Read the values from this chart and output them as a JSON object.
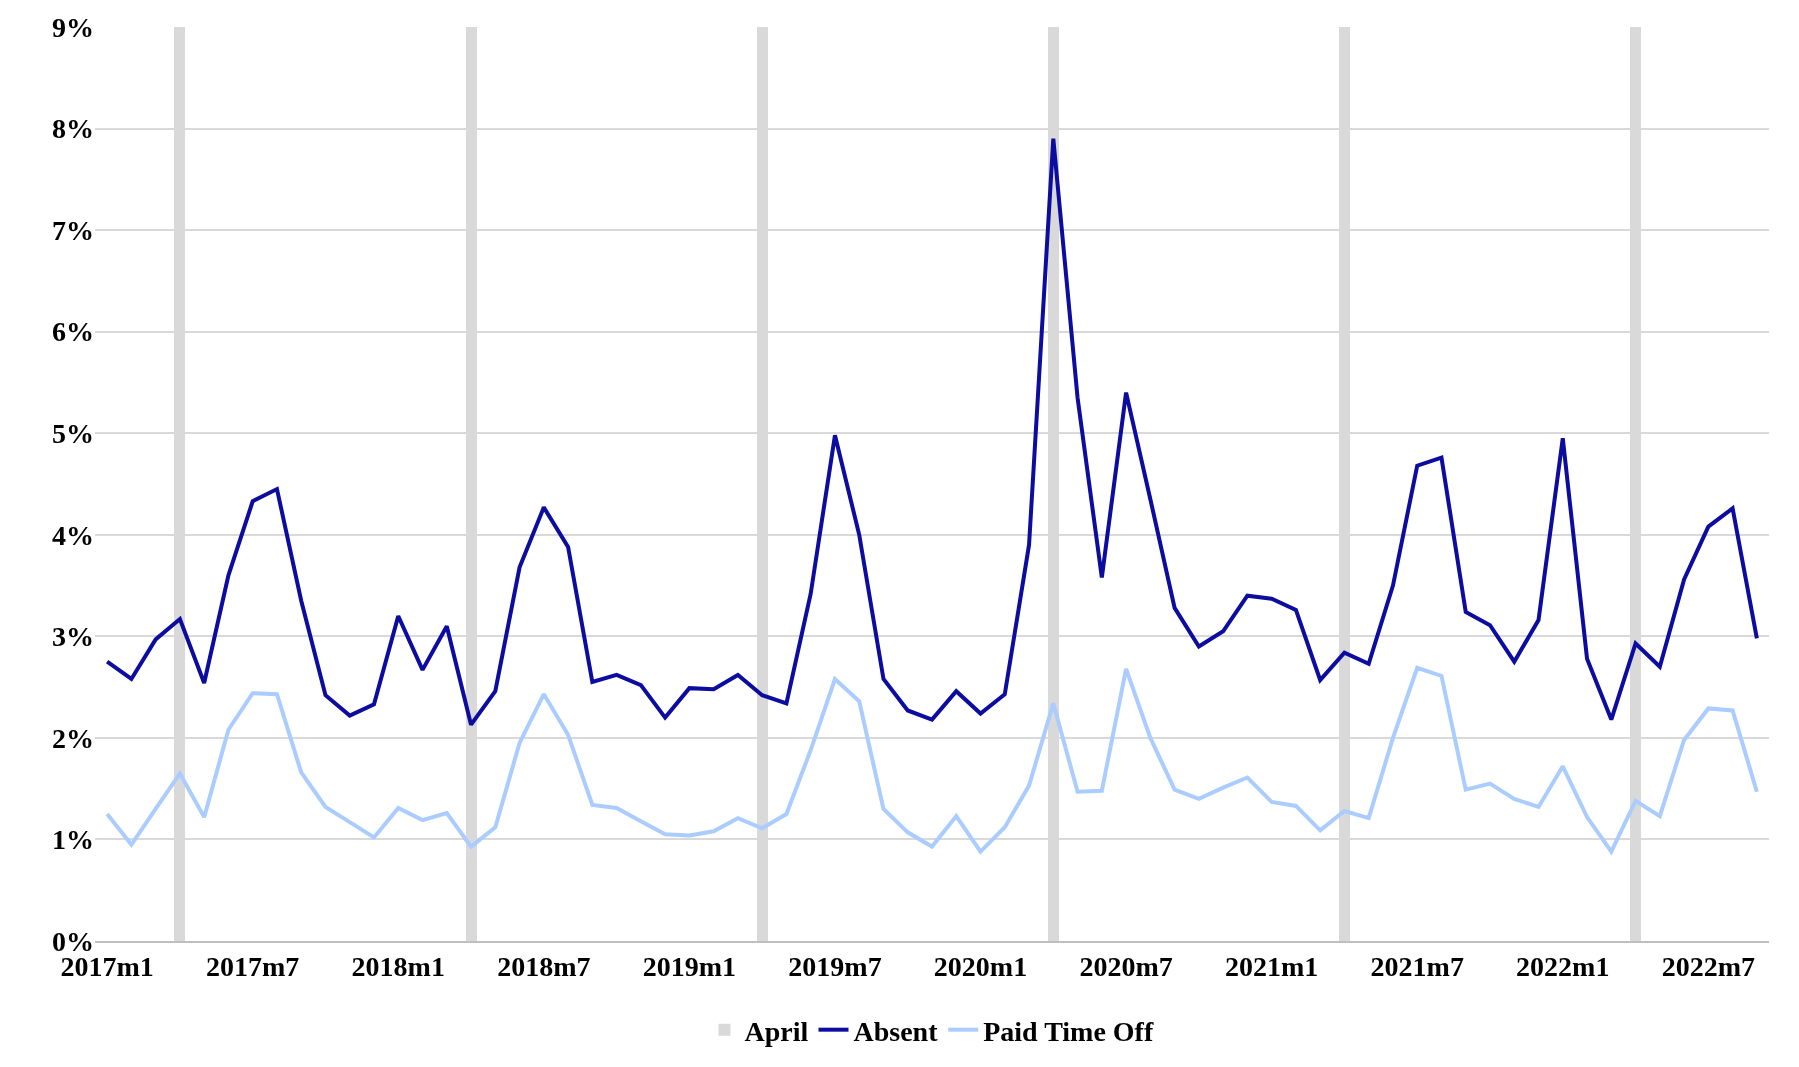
{
  "chart_data": {
    "type": "line",
    "categories": [
      "2017m1",
      null,
      null,
      null,
      null,
      null,
      "2017m7",
      null,
      null,
      null,
      null,
      null,
      "2018m1",
      null,
      null,
      null,
      null,
      null,
      "2018m7",
      null,
      null,
      null,
      null,
      null,
      "2019m1",
      null,
      null,
      null,
      null,
      null,
      "2019m7",
      null,
      null,
      null,
      null,
      null,
      "2020m1",
      null,
      null,
      null,
      null,
      null,
      "2020m7",
      null,
      null,
      null,
      null,
      null,
      "2021m1",
      null,
      null,
      null,
      null,
      null,
      "2021m7",
      null,
      null,
      null,
      null,
      null,
      "2022m1",
      null,
      null,
      null,
      null,
      null,
      "2022m7",
      null,
      null
    ],
    "series": [
      {
        "name": "April",
        "type": "bar",
        "color": "#d9d9d9",
        "values": [
          null,
          null,
          null,
          9,
          null,
          null,
          null,
          null,
          null,
          null,
          null,
          null,
          null,
          null,
          null,
          9,
          null,
          null,
          null,
          null,
          null,
          null,
          null,
          null,
          null,
          null,
          null,
          9,
          null,
          null,
          null,
          null,
          null,
          null,
          null,
          null,
          null,
          null,
          null,
          9,
          null,
          null,
          null,
          null,
          null,
          null,
          null,
          null,
          null,
          null,
          null,
          9,
          null,
          null,
          null,
          null,
          null,
          null,
          null,
          null,
          null,
          null,
          null,
          9,
          null,
          null,
          null,
          null,
          null
        ]
      },
      {
        "name": "Absent",
        "color": "#0c0ca0",
        "values": [
          2.75,
          2.58,
          2.97,
          3.17,
          2.54,
          3.6,
          4.33,
          4.45,
          3.35,
          2.42,
          2.22,
          2.33,
          3.2,
          2.67,
          3.1,
          2.13,
          2.46,
          3.68,
          4.27,
          3.88,
          2.55,
          2.62,
          2.52,
          2.2,
          2.49,
          2.48,
          2.62,
          2.42,
          2.34,
          3.42,
          4.98,
          4.0,
          2.58,
          2.27,
          2.18,
          2.46,
          2.24,
          2.43,
          3.9,
          7.9,
          5.35,
          3.58,
          5.4,
          4.35,
          3.28,
          2.9,
          3.05,
          3.4,
          3.37,
          3.26,
          2.57,
          2.84,
          2.73,
          3.5,
          4.68,
          4.76,
          3.24,
          3.11,
          2.75,
          3.16,
          4.95,
          2.78,
          2.18,
          2.93,
          2.7,
          3.56,
          4.08,
          4.26,
          2.98
        ]
      },
      {
        "name": "Paid Time Off",
        "color": "#aaccff",
        "values": [
          1.25,
          0.95,
          1.3,
          1.65,
          1.22,
          2.08,
          2.44,
          2.43,
          1.66,
          1.32,
          1.17,
          1.02,
          1.31,
          1.19,
          1.26,
          0.93,
          1.12,
          1.95,
          2.43,
          2.03,
          1.34,
          1.31,
          1.18,
          1.05,
          1.04,
          1.08,
          1.21,
          1.11,
          1.25,
          1.88,
          2.58,
          2.36,
          1.3,
          1.07,
          0.93,
          1.23,
          0.88,
          1.12,
          1.53,
          2.34,
          1.47,
          1.48,
          2.68,
          2.0,
          1.49,
          1.4,
          1.51,
          1.61,
          1.37,
          1.33,
          1.09,
          1.28,
          1.21,
          2.0,
          2.69,
          2.61,
          1.49,
          1.55,
          1.4,
          1.32,
          1.72,
          1.22,
          0.88,
          1.38,
          1.23,
          1.98,
          2.29,
          2.27,
          1.47
        ]
      }
    ],
    "ylim": [
      0,
      9
    ],
    "yticks": [
      {
        "value": 0,
        "label": "0%"
      },
      {
        "value": 1,
        "label": "1%"
      },
      {
        "value": 2,
        "label": "2%"
      },
      {
        "value": 3,
        "label": "3%"
      },
      {
        "value": 4,
        "label": "4%"
      },
      {
        "value": 5,
        "label": "5%"
      },
      {
        "value": 6,
        "label": "6%"
      },
      {
        "value": 7,
        "label": "7%"
      },
      {
        "value": 8,
        "label": "8%"
      },
      {
        "value": 9,
        "label": "9%"
      }
    ],
    "grid": "y",
    "legend": "bottom",
    "marker": "none",
    "line_style": "solid"
  }
}
